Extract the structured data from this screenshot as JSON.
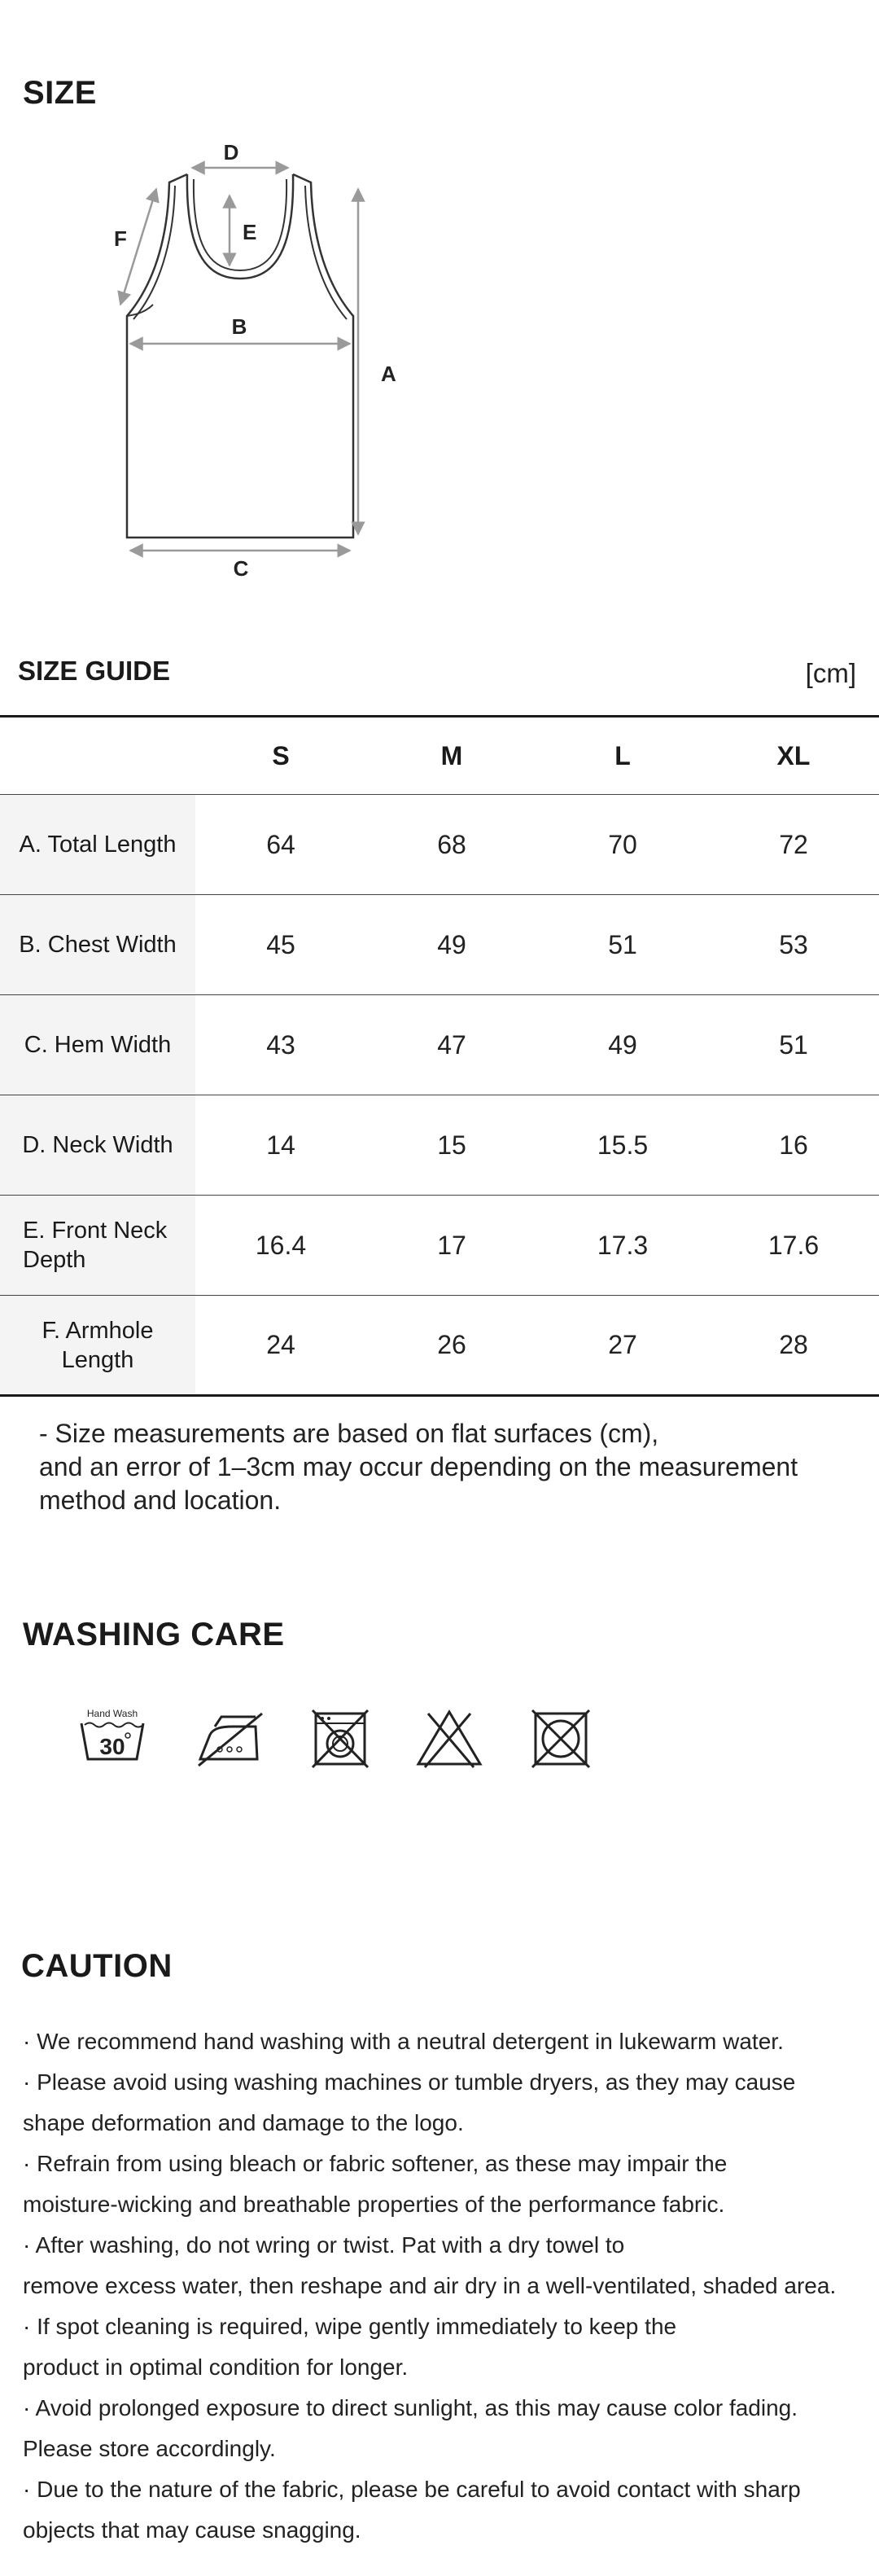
{
  "size_section": {
    "title": "SIZE",
    "labels": {
      "a": "A",
      "b": "B",
      "c": "C",
      "d": "D",
      "e": "E",
      "f": "F"
    }
  },
  "size_guide": {
    "title": "SIZE GUIDE",
    "unit": "[cm]",
    "columns": [
      "S",
      "M",
      "L",
      "XL"
    ],
    "rows": [
      {
        "label": "A. Total Length",
        "values": [
          "64",
          "68",
          "70",
          "72"
        ]
      },
      {
        "label": "B. Chest Width",
        "values": [
          "45",
          "49",
          "51",
          "53"
        ]
      },
      {
        "label": "C. Hem Width",
        "values": [
          "43",
          "47",
          "49",
          "51"
        ]
      },
      {
        "label": "D. Neck Width",
        "values": [
          "14",
          "15",
          "15.5",
          "16"
        ]
      },
      {
        "label": "E. Front Neck Depth",
        "values": [
          "16.4",
          "17",
          "17.3",
          "17.6"
        ]
      },
      {
        "label": "F. Armhole Length",
        "values": [
          "24",
          "26",
          "27",
          "28"
        ]
      }
    ],
    "note_lines": [
      "- Size measurements are based on flat surfaces (cm),",
      "and an error of 1–3cm may occur depending on the measurement",
      "method and location."
    ]
  },
  "washing_care": {
    "title": "WASHING CARE",
    "hand_wash_label": "Hand Wash",
    "hand_wash_temp": "30",
    "icons": [
      "hand-wash-30-icon",
      "do-not-iron-icon",
      "do-not-machine-wash-icon",
      "do-not-bleach-icon",
      "do-not-tumble-dry-icon"
    ]
  },
  "caution": {
    "title": "CAUTION",
    "lines": [
      "· We recommend hand washing with a neutral detergent in lukewarm water.",
      "· Please avoid using washing machines or tumble dryers, as they may cause",
      "shape deformation and damage to the logo.",
      "· Refrain from using bleach or fabric softener, as these may impair the",
      "moisture-wicking and breathable properties of the performance fabric.",
      "· After washing, do not wring or twist. Pat with a dry towel to",
      "remove excess water, then reshape and air dry in a well-ventilated, shaded area.",
      "· If spot cleaning is required, wipe gently immediately to keep the",
      "product in optimal condition for longer.",
      "· Avoid prolonged exposure to direct sunlight, as this may cause color fading.",
      "Please store accordingly.",
      "· Due to the nature of the fabric, please be careful to avoid contact with sharp",
      "objects that may cause snagging."
    ]
  }
}
